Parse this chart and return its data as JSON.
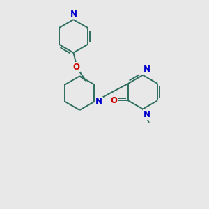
{
  "bg_color": "#e8e8e8",
  "bond_color": "#2d6e5e",
  "N_color": "#0000cc",
  "O_color": "#cc0000",
  "font_size": 8.5,
  "line_width": 1.4,
  "fig_size": [
    3.0,
    3.0
  ],
  "dpi": 100,
  "xlim": [
    0,
    10
  ],
  "ylim": [
    0,
    10
  ]
}
